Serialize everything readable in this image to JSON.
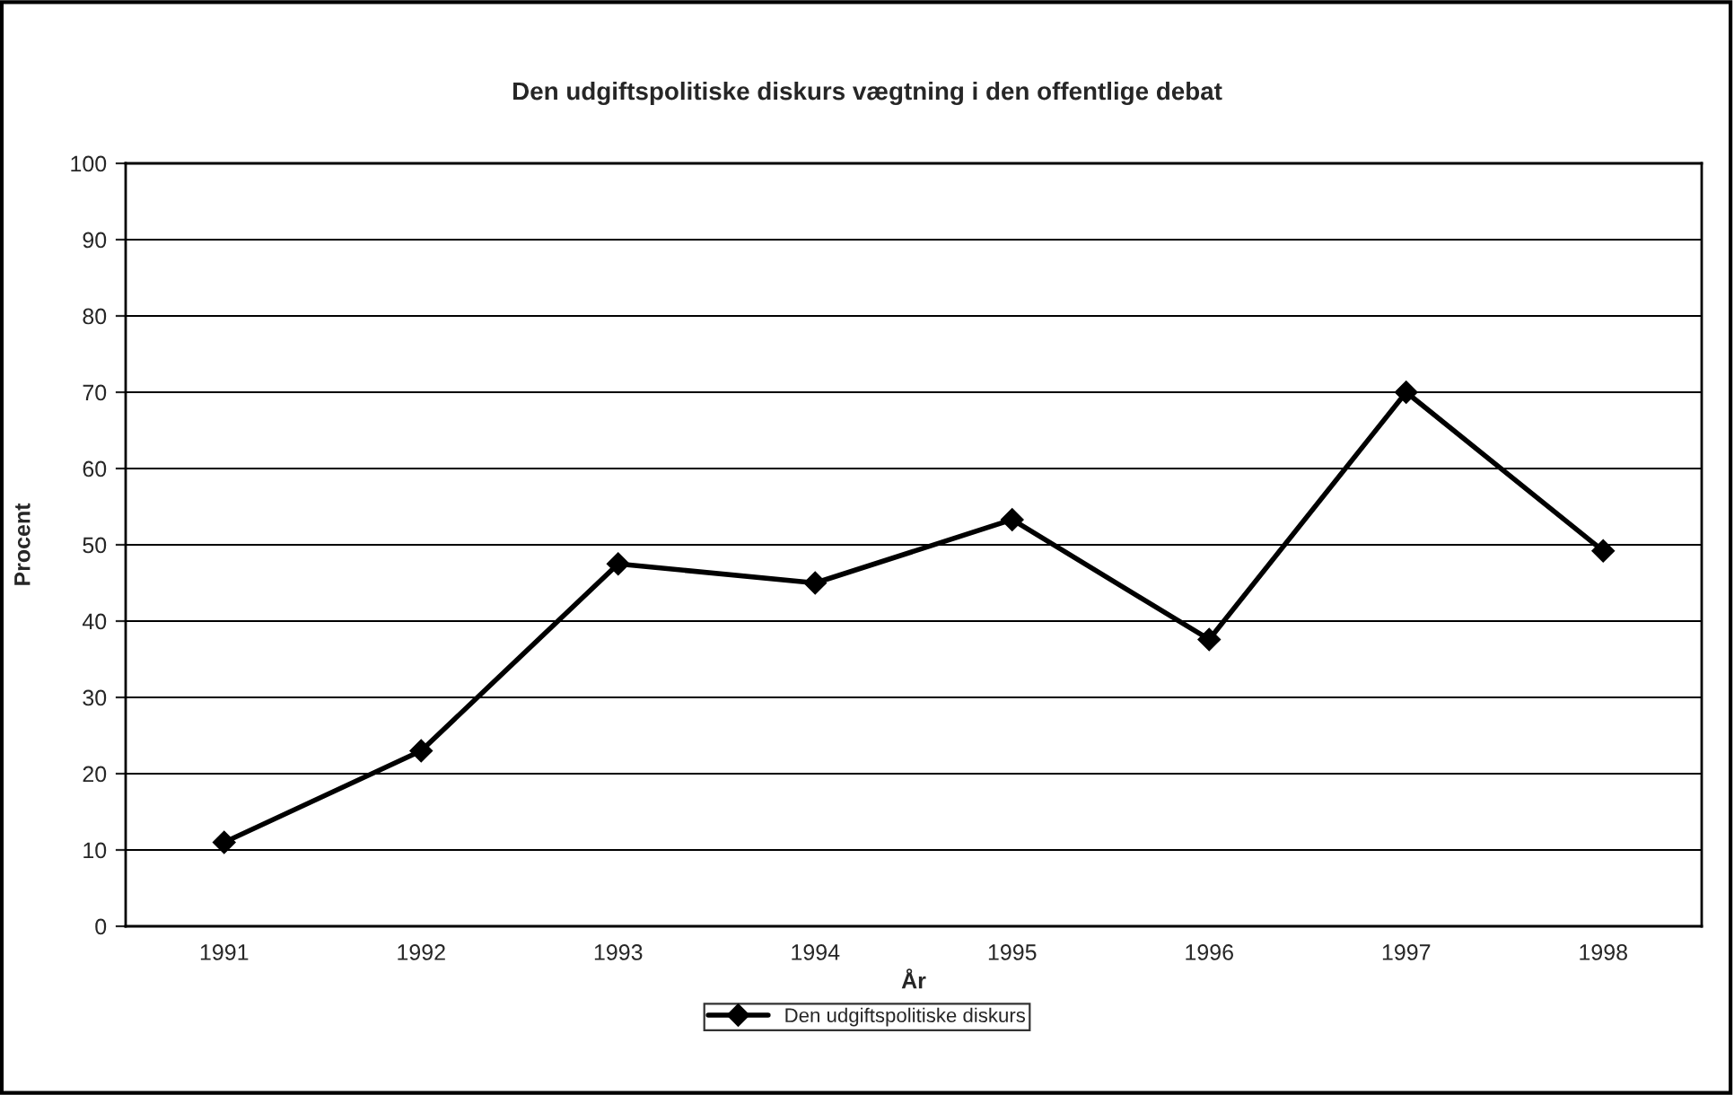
{
  "chart_data": {
    "type": "line",
    "title": "Den udgiftspolitiske diskurs vægtning i den offentlige debat",
    "xlabel": "År",
    "ylabel": "Procent",
    "categories": [
      "1991",
      "1992",
      "1993",
      "1994",
      "1995",
      "1996",
      "1997",
      "1998"
    ],
    "series": [
      {
        "name": "Den udgiftspolitiske diskurs",
        "color": "#000000",
        "values": [
          11,
          23,
          47.5,
          45,
          53.3,
          37.6,
          70,
          49.2
        ]
      }
    ],
    "ylim": [
      0,
      100
    ],
    "yticks": [
      0,
      10,
      20,
      30,
      40,
      50,
      60,
      70,
      80,
      90,
      100
    ],
    "grid": "y",
    "legend": "bottom",
    "marker": "diamond",
    "line_style": "solid"
  }
}
